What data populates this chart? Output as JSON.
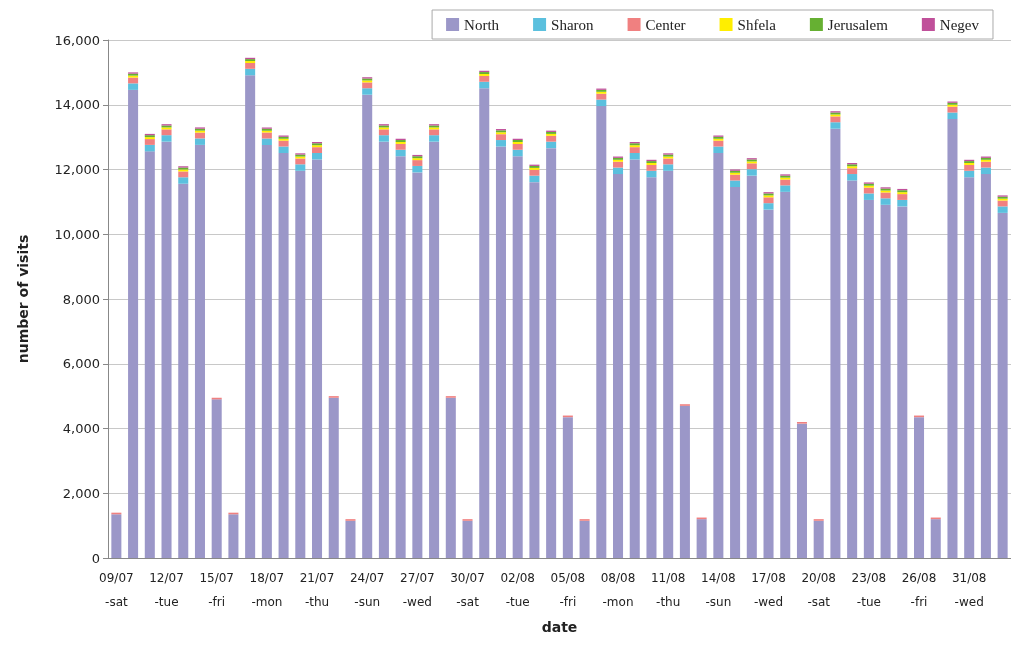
{
  "chart_data": {
    "type": "bar",
    "stacked": true,
    "xlabel": "date",
    "ylabel": "number of visits",
    "categories": [
      "09/07\n-sat",
      null,
      null,
      "12/07\n-tue",
      null,
      null,
      "15/07\n-fri",
      null,
      null,
      "18/07\n-mon",
      null,
      null,
      "21/07\n-thu",
      null,
      null,
      "24/07\n-sun",
      null,
      null,
      "27/07\n-wed",
      null,
      null,
      "30/07\n-sat",
      null,
      null,
      "02/08\n-tue",
      null,
      null,
      "05/08\n-fri",
      null,
      null,
      "08/08\n-mon",
      null,
      null,
      "11/08\n-thu",
      null,
      null,
      "14/08\n-sun",
      null,
      null,
      "17/08\n-wed",
      null,
      null,
      "20/08\n-sat",
      null,
      null,
      "23/08\n-tue",
      null,
      null,
      "26/08\n-fri",
      null,
      null,
      "31/08\n-wed",
      null,
      null
    ],
    "ylim": [
      0,
      16000
    ],
    "yticks": [
      0,
      {
        "value": 2000,
        "label": "2,000"
      },
      {
        "value": 4000,
        "label": "4,000"
      },
      {
        "value": 6000,
        "label": "6,000"
      },
      {
        "value": 8000,
        "label": "8,000"
      },
      {
        "value": 10000,
        "label": "10,000"
      },
      {
        "value": 12000,
        "label": "12,000"
      },
      {
        "value": 14000,
        "label": "14,000"
      },
      {
        "value": 16000,
        "label": "16,000"
      }
    ],
    "grid": "y",
    "legend": "top right",
    "series": [
      {
        "name": "North",
        "color": "#9b97c8",
        "values": [
          1350,
          14460,
          12560,
          12860,
          11560,
          12760,
          4900,
          1350,
          14910,
          12760,
          12510,
          11960,
          12310,
          4950,
          1150,
          14310,
          12860,
          12410,
          11910,
          12860,
          4950,
          1150,
          14510,
          12710,
          12410,
          11610,
          12660,
          4350,
          1150,
          13960,
          11860,
          12310,
          11760,
          11960,
          4700,
          1200,
          12510,
          11460,
          11810,
          10760,
          11310,
          4150,
          1150,
          13260,
          11660,
          11060,
          10910,
          10860,
          4350,
          1200,
          13560,
          11760,
          11860,
          10660
        ]
      },
      {
        "name": "Sharon",
        "color": "#5bc0de",
        "values": [
          null,
          200,
          200,
          200,
          200,
          200,
          null,
          null,
          200,
          200,
          200,
          200,
          200,
          null,
          null,
          200,
          200,
          200,
          200,
          200,
          null,
          null,
          200,
          200,
          200,
          200,
          200,
          null,
          null,
          200,
          200,
          200,
          200,
          200,
          null,
          null,
          200,
          200,
          200,
          200,
          200,
          null,
          null,
          200,
          200,
          200,
          200,
          200,
          null,
          null,
          200,
          200,
          200,
          200
        ]
      },
      {
        "name": "Center",
        "color": "#f08080",
        "values": [
          50,
          180,
          180,
          180,
          180,
          180,
          50,
          50,
          180,
          180,
          180,
          180,
          180,
          50,
          50,
          180,
          180,
          180,
          180,
          180,
          50,
          50,
          180,
          180,
          180,
          180,
          180,
          50,
          50,
          180,
          180,
          180,
          180,
          180,
          50,
          50,
          180,
          180,
          180,
          180,
          180,
          50,
          50,
          180,
          180,
          180,
          180,
          180,
          50,
          50,
          180,
          180,
          180,
          180
        ]
      },
      {
        "name": "Shfela",
        "color": "#ffee00",
        "values": [
          null,
          60,
          60,
          60,
          60,
          60,
          null,
          null,
          60,
          60,
          60,
          60,
          60,
          null,
          null,
          60,
          60,
          60,
          60,
          60,
          null,
          null,
          60,
          60,
          60,
          60,
          60,
          null,
          null,
          60,
          60,
          60,
          60,
          60,
          null,
          null,
          60,
          60,
          60,
          60,
          60,
          null,
          null,
          60,
          60,
          60,
          60,
          60,
          null,
          null,
          60,
          60,
          60,
          60
        ]
      },
      {
        "name": "Jerusalem",
        "color": "#66b032",
        "values": [
          null,
          60,
          60,
          60,
          60,
          60,
          null,
          null,
          60,
          60,
          60,
          60,
          60,
          null,
          null,
          60,
          60,
          60,
          60,
          60,
          null,
          null,
          60,
          60,
          60,
          60,
          60,
          null,
          null,
          60,
          60,
          60,
          60,
          60,
          null,
          null,
          60,
          60,
          60,
          60,
          60,
          null,
          null,
          60,
          60,
          60,
          60,
          60,
          null,
          null,
          60,
          60,
          60,
          60
        ]
      },
      {
        "name": "Negev",
        "color": "#c0509a",
        "values": [
          null,
          40,
          40,
          40,
          40,
          40,
          null,
          null,
          40,
          40,
          40,
          40,
          40,
          null,
          null,
          40,
          40,
          40,
          40,
          40,
          null,
          null,
          40,
          40,
          40,
          40,
          40,
          null,
          null,
          40,
          40,
          40,
          40,
          40,
          null,
          null,
          40,
          40,
          40,
          40,
          40,
          null,
          null,
          40,
          40,
          40,
          40,
          40,
          null,
          null,
          40,
          40,
          40,
          40
        ]
      }
    ]
  }
}
